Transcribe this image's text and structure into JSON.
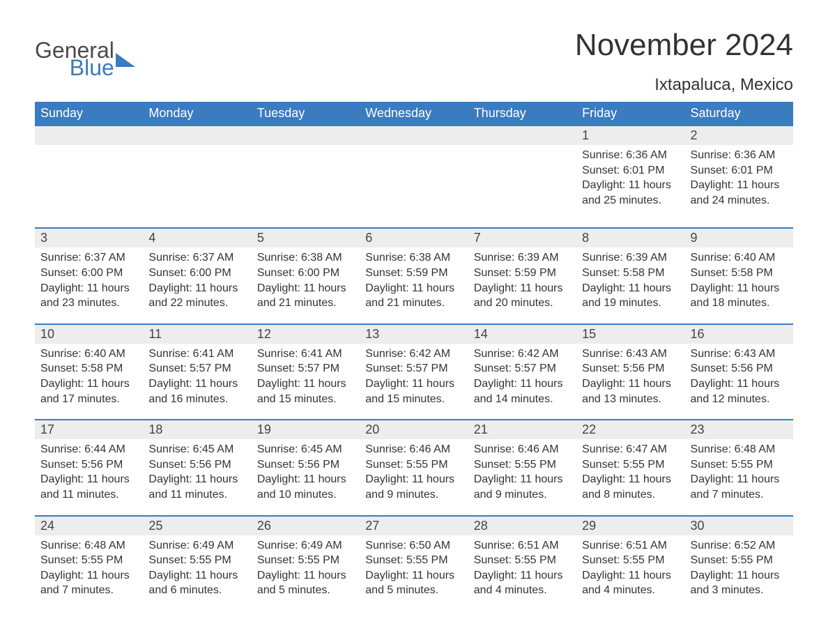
{
  "logo": {
    "general": "General",
    "blue": "Blue"
  },
  "title": "November 2024",
  "location": "Ixtapaluca, Mexico",
  "colors": {
    "brand_blue": "#3b7bbf",
    "header_bg": "#3b7bbf",
    "header_text": "#ffffff",
    "daynum_bg": "#ededed",
    "text": "#333333",
    "page_bg": "#ffffff"
  },
  "weekdays": [
    "Sunday",
    "Monday",
    "Tuesday",
    "Wednesday",
    "Thursday",
    "Friday",
    "Saturday"
  ],
  "weeks": [
    [
      null,
      null,
      null,
      null,
      null,
      {
        "n": "1",
        "sunrise": "Sunrise: 6:36 AM",
        "sunset": "Sunset: 6:01 PM",
        "day1": "Daylight: 11 hours",
        "day2": "and 25 minutes."
      },
      {
        "n": "2",
        "sunrise": "Sunrise: 6:36 AM",
        "sunset": "Sunset: 6:01 PM",
        "day1": "Daylight: 11 hours",
        "day2": "and 24 minutes."
      }
    ],
    [
      {
        "n": "3",
        "sunrise": "Sunrise: 6:37 AM",
        "sunset": "Sunset: 6:00 PM",
        "day1": "Daylight: 11 hours",
        "day2": "and 23 minutes."
      },
      {
        "n": "4",
        "sunrise": "Sunrise: 6:37 AM",
        "sunset": "Sunset: 6:00 PM",
        "day1": "Daylight: 11 hours",
        "day2": "and 22 minutes."
      },
      {
        "n": "5",
        "sunrise": "Sunrise: 6:38 AM",
        "sunset": "Sunset: 6:00 PM",
        "day1": "Daylight: 11 hours",
        "day2": "and 21 minutes."
      },
      {
        "n": "6",
        "sunrise": "Sunrise: 6:38 AM",
        "sunset": "Sunset: 5:59 PM",
        "day1": "Daylight: 11 hours",
        "day2": "and 21 minutes."
      },
      {
        "n": "7",
        "sunrise": "Sunrise: 6:39 AM",
        "sunset": "Sunset: 5:59 PM",
        "day1": "Daylight: 11 hours",
        "day2": "and 20 minutes."
      },
      {
        "n": "8",
        "sunrise": "Sunrise: 6:39 AM",
        "sunset": "Sunset: 5:58 PM",
        "day1": "Daylight: 11 hours",
        "day2": "and 19 minutes."
      },
      {
        "n": "9",
        "sunrise": "Sunrise: 6:40 AM",
        "sunset": "Sunset: 5:58 PM",
        "day1": "Daylight: 11 hours",
        "day2": "and 18 minutes."
      }
    ],
    [
      {
        "n": "10",
        "sunrise": "Sunrise: 6:40 AM",
        "sunset": "Sunset: 5:58 PM",
        "day1": "Daylight: 11 hours",
        "day2": "and 17 minutes."
      },
      {
        "n": "11",
        "sunrise": "Sunrise: 6:41 AM",
        "sunset": "Sunset: 5:57 PM",
        "day1": "Daylight: 11 hours",
        "day2": "and 16 minutes."
      },
      {
        "n": "12",
        "sunrise": "Sunrise: 6:41 AM",
        "sunset": "Sunset: 5:57 PM",
        "day1": "Daylight: 11 hours",
        "day2": "and 15 minutes."
      },
      {
        "n": "13",
        "sunrise": "Sunrise: 6:42 AM",
        "sunset": "Sunset: 5:57 PM",
        "day1": "Daylight: 11 hours",
        "day2": "and 15 minutes."
      },
      {
        "n": "14",
        "sunrise": "Sunrise: 6:42 AM",
        "sunset": "Sunset: 5:57 PM",
        "day1": "Daylight: 11 hours",
        "day2": "and 14 minutes."
      },
      {
        "n": "15",
        "sunrise": "Sunrise: 6:43 AM",
        "sunset": "Sunset: 5:56 PM",
        "day1": "Daylight: 11 hours",
        "day2": "and 13 minutes."
      },
      {
        "n": "16",
        "sunrise": "Sunrise: 6:43 AM",
        "sunset": "Sunset: 5:56 PM",
        "day1": "Daylight: 11 hours",
        "day2": "and 12 minutes."
      }
    ],
    [
      {
        "n": "17",
        "sunrise": "Sunrise: 6:44 AM",
        "sunset": "Sunset: 5:56 PM",
        "day1": "Daylight: 11 hours",
        "day2": "and 11 minutes."
      },
      {
        "n": "18",
        "sunrise": "Sunrise: 6:45 AM",
        "sunset": "Sunset: 5:56 PM",
        "day1": "Daylight: 11 hours",
        "day2": "and 11 minutes."
      },
      {
        "n": "19",
        "sunrise": "Sunrise: 6:45 AM",
        "sunset": "Sunset: 5:56 PM",
        "day1": "Daylight: 11 hours",
        "day2": "and 10 minutes."
      },
      {
        "n": "20",
        "sunrise": "Sunrise: 6:46 AM",
        "sunset": "Sunset: 5:55 PM",
        "day1": "Daylight: 11 hours",
        "day2": "and 9 minutes."
      },
      {
        "n": "21",
        "sunrise": "Sunrise: 6:46 AM",
        "sunset": "Sunset: 5:55 PM",
        "day1": "Daylight: 11 hours",
        "day2": "and 9 minutes."
      },
      {
        "n": "22",
        "sunrise": "Sunrise: 6:47 AM",
        "sunset": "Sunset: 5:55 PM",
        "day1": "Daylight: 11 hours",
        "day2": "and 8 minutes."
      },
      {
        "n": "23",
        "sunrise": "Sunrise: 6:48 AM",
        "sunset": "Sunset: 5:55 PM",
        "day1": "Daylight: 11 hours",
        "day2": "and 7 minutes."
      }
    ],
    [
      {
        "n": "24",
        "sunrise": "Sunrise: 6:48 AM",
        "sunset": "Sunset: 5:55 PM",
        "day1": "Daylight: 11 hours",
        "day2": "and 7 minutes."
      },
      {
        "n": "25",
        "sunrise": "Sunrise: 6:49 AM",
        "sunset": "Sunset: 5:55 PM",
        "day1": "Daylight: 11 hours",
        "day2": "and 6 minutes."
      },
      {
        "n": "26",
        "sunrise": "Sunrise: 6:49 AM",
        "sunset": "Sunset: 5:55 PM",
        "day1": "Daylight: 11 hours",
        "day2": "and 5 minutes."
      },
      {
        "n": "27",
        "sunrise": "Sunrise: 6:50 AM",
        "sunset": "Sunset: 5:55 PM",
        "day1": "Daylight: 11 hours",
        "day2": "and 5 minutes."
      },
      {
        "n": "28",
        "sunrise": "Sunrise: 6:51 AM",
        "sunset": "Sunset: 5:55 PM",
        "day1": "Daylight: 11 hours",
        "day2": "and 4 minutes."
      },
      {
        "n": "29",
        "sunrise": "Sunrise: 6:51 AM",
        "sunset": "Sunset: 5:55 PM",
        "day1": "Daylight: 11 hours",
        "day2": "and 4 minutes."
      },
      {
        "n": "30",
        "sunrise": "Sunrise: 6:52 AM",
        "sunset": "Sunset: 5:55 PM",
        "day1": "Daylight: 11 hours",
        "day2": "and 3 minutes."
      }
    ]
  ]
}
